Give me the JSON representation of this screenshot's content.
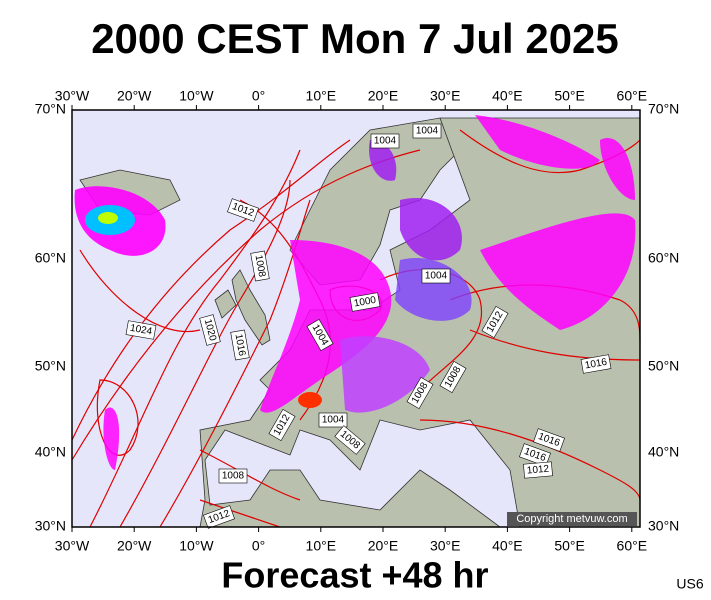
{
  "title": "2000 CEST Mon 7 Jul 2025",
  "x_axis_top": [
    "30°W",
    "20°W",
    "10°W",
    "0°",
    "10°E",
    "20°E",
    "30°E",
    "40°E",
    "50°E",
    "60°E"
  ],
  "x_axis_bottom": [
    "30°W",
    "20°W",
    "10°W",
    "0°",
    "10°E",
    "20°E",
    "30°E",
    "40°E",
    "50°E",
    "60°E"
  ],
  "y_axis_left": [
    "70°N",
    "60°N",
    "50°N",
    "40°N",
    "30°N"
  ],
  "y_axis_right": [
    "70°N",
    "60°N",
    "50°N",
    "40°N",
    "30°N"
  ],
  "isobar_labels": [
    "1004",
    "1004",
    "1012",
    "1008",
    "1004",
    "1000",
    "1024",
    "1020",
    "1016",
    "1004",
    "1012",
    "1016",
    "1008",
    "1008",
    "1012",
    "1004",
    "1008",
    "1016",
    "1016",
    "1012",
    "1008",
    "1012"
  ],
  "copyright": "Copyright metvuw.com",
  "footer": "Forecast +48 hr",
  "code": "US6"
}
